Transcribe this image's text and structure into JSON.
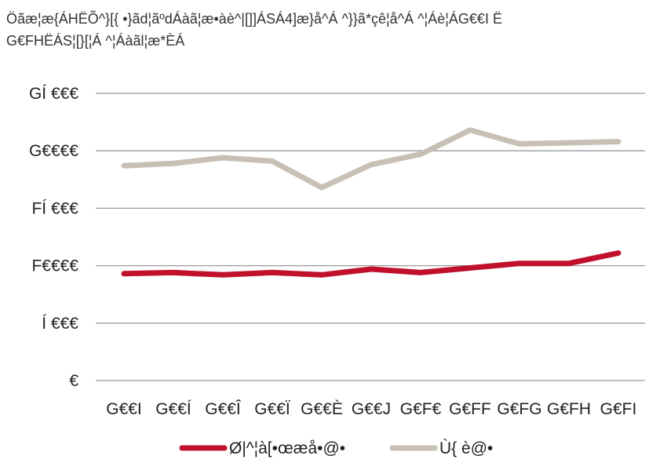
{
  "caption": {
    "line1": "Öãæ¦æ{ÁHËÕ^}[{ •}ãd¦ãºdÁàã¦æ•àè^|[]]ÁSÁ4]æ}å^Á ^}}ã*çê¦å^Á ^¦Áè¦ÁG€€I Ë",
    "line2": "G€FHËÁS¦[}[¦Á ^¦Áàãl¦æ*ÈÁ"
  },
  "chart_data": {
    "type": "line",
    "categories": [
      "G€€I",
      "G€€Í",
      "G€€Î",
      "G€€Ï",
      "G€€È",
      "G€€J",
      "G€F€",
      "G€FF",
      "G€FG",
      "G€FH",
      "G€FI"
    ],
    "y_ticks": [
      {
        "value": 0,
        "label": "€"
      },
      {
        "value": 5000,
        "label": "Í €€€"
      },
      {
        "value": 10000,
        "label": "F€€€€"
      },
      {
        "value": 15000,
        "label": "FÍ €€€"
      },
      {
        "value": 20000,
        "label": "G€€€€"
      },
      {
        "value": 25000,
        "label": "GÍ €€€"
      }
    ],
    "ylim": [
      0,
      25000
    ],
    "grid": true,
    "legend": "bottom",
    "series": [
      {
        "name": "Ø|^¦à[•œæå•@•",
        "color": "#c0102c",
        "values": [
          9300,
          9400,
          9200,
          9400,
          9200,
          9700,
          9400,
          9800,
          10200,
          10200,
          11100
        ]
      },
      {
        "name": "Ù{ è@•",
        "color": "#c8c0b4",
        "values": [
          18700,
          18900,
          19400,
          19100,
          16800,
          18800,
          19700,
          21800,
          20600,
          20700,
          20800
        ]
      }
    ]
  },
  "colors": {
    "grid": "#9b9b9b",
    "text": "#222222"
  }
}
